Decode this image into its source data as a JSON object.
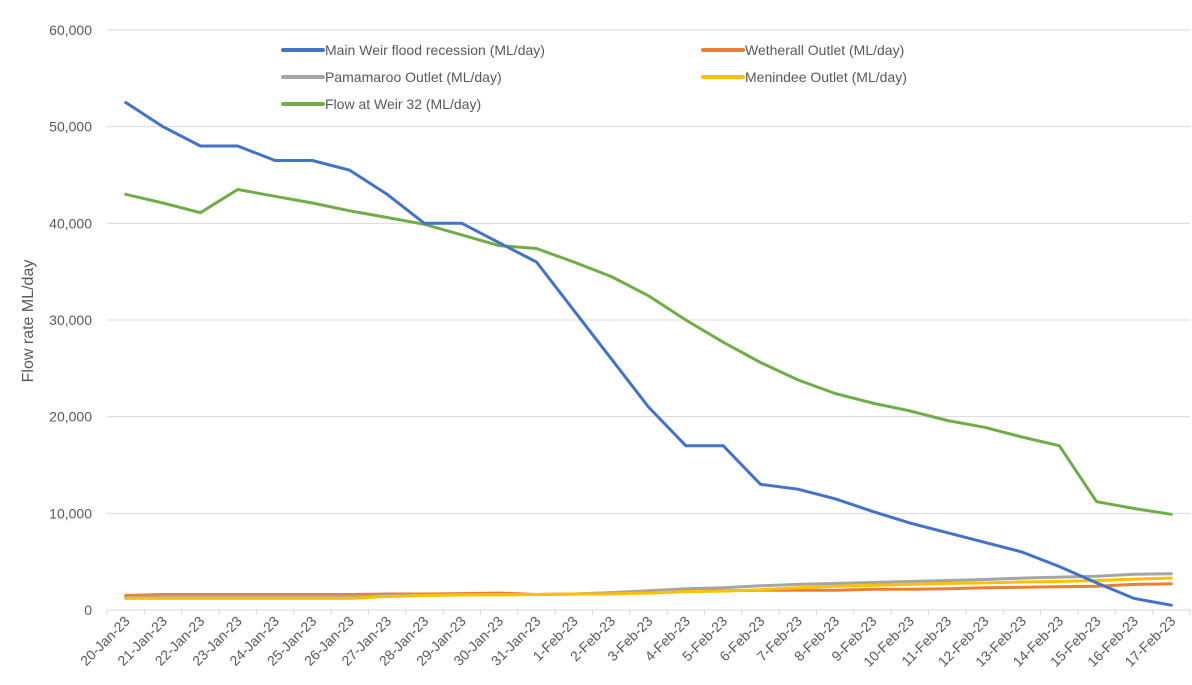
{
  "chart_data": {
    "type": "line",
    "title": "",
    "xlabel": "",
    "ylabel": "Flow rate ML/day",
    "ylim": [
      0,
      60000
    ],
    "yticks": [
      0,
      10000,
      20000,
      30000,
      40000,
      50000,
      60000
    ],
    "ytick_labels": [
      "0",
      "10,000",
      "20,000",
      "30,000",
      "40,000",
      "50,000",
      "60,000"
    ],
    "grid": "horizontal",
    "legend_position": "top",
    "categories": [
      "20-Jan-23",
      "21-Jan-23",
      "22-Jan-23",
      "23-Jan-23",
      "24-Jan-23",
      "25-Jan-23",
      "26-Jan-23",
      "27-Jan-23",
      "28-Jan-23",
      "29-Jan-23",
      "30-Jan-23",
      "31-Jan-23",
      "1-Feb-23",
      "2-Feb-23",
      "3-Feb-23",
      "4-Feb-23",
      "5-Feb-23",
      "6-Feb-23",
      "7-Feb-23",
      "8-Feb-23",
      "9-Feb-23",
      "10-Feb-23",
      "11-Feb-23",
      "12-Feb-23",
      "13-Feb-23",
      "14-Feb-23",
      "15-Feb-23",
      "16-Feb-23",
      "17-Feb-23"
    ],
    "series": [
      {
        "name": "Main Weir flood recession (ML/day)",
        "color": "#4472C4",
        "values": [
          52500,
          50000,
          48000,
          48000,
          46500,
          46500,
          45500,
          43000,
          40000,
          40000,
          38000,
          36000,
          31000,
          26000,
          21000,
          17000,
          17000,
          13000,
          12500,
          11500,
          10200,
          9000,
          8000,
          7000,
          6000,
          4500,
          2800,
          1200,
          500
        ]
      },
      {
        "name": "Wetherall Outlet (ML/day)",
        "color": "#ED7D31",
        "values": [
          1500,
          1600,
          1600,
          1600,
          1600,
          1600,
          1600,
          1650,
          1650,
          1700,
          1750,
          1600,
          1650,
          1700,
          1850,
          2000,
          2000,
          2050,
          2050,
          2050,
          2150,
          2150,
          2200,
          2300,
          2350,
          2400,
          2450,
          2650,
          2700
        ]
      },
      {
        "name": "Pamamaroo Outlet (ML/day)",
        "color": "#A5A5A5",
        "values": [
          1300,
          1400,
          1400,
          1400,
          1400,
          1400,
          1400,
          1500,
          1550,
          1600,
          1600,
          1600,
          1650,
          1800,
          2000,
          2200,
          2300,
          2500,
          2650,
          2750,
          2850,
          2950,
          3050,
          3150,
          3300,
          3400,
          3500,
          3700,
          3750
        ]
      },
      {
        "name": "Menindee Outlet (ML/day)",
        "color": "#FFC000",
        "values": [
          1200,
          1200,
          1200,
          1200,
          1200,
          1200,
          1200,
          1400,
          1500,
          1550,
          1550,
          1600,
          1650,
          1650,
          1750,
          1900,
          1950,
          2100,
          2300,
          2450,
          2550,
          2650,
          2750,
          2800,
          2900,
          2950,
          3050,
          3200,
          3300
        ]
      },
      {
        "name": "Flow at Weir 32 (ML/day)",
        "color": "#70AD47",
        "values": [
          43000,
          42100,
          41100,
          43500,
          42800,
          42100,
          41300,
          40600,
          39900,
          38800,
          37700,
          37400,
          36000,
          34500,
          32500,
          30000,
          27700,
          25600,
          23800,
          22400,
          21400,
          20600,
          19600,
          18900,
          17900,
          17000,
          11200,
          10500,
          9900
        ]
      }
    ]
  }
}
